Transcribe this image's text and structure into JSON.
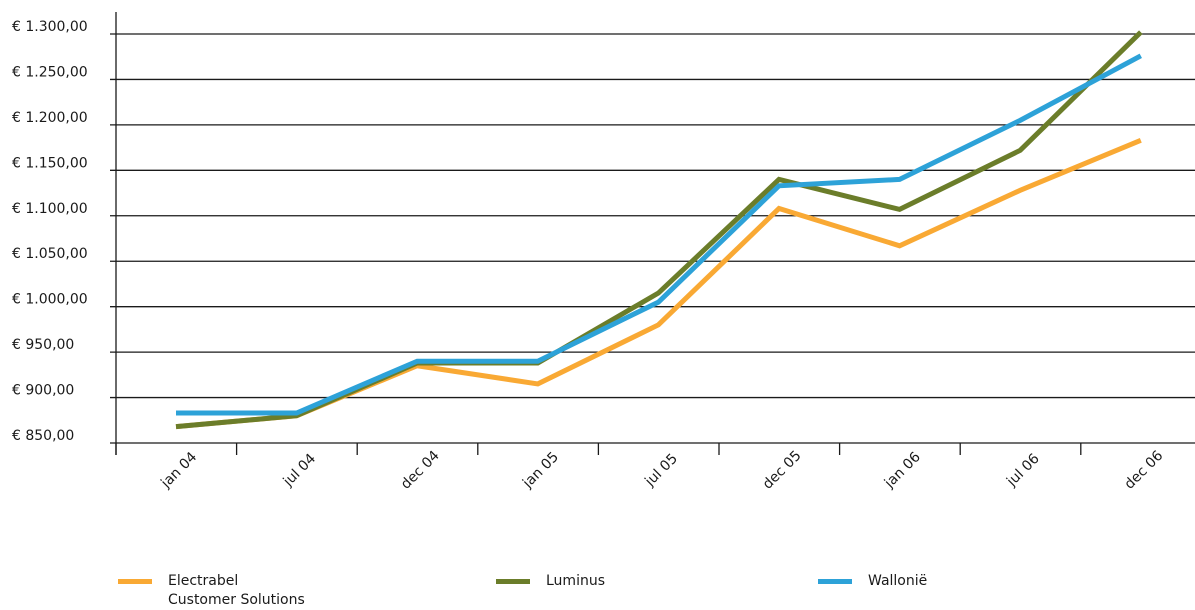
{
  "chart_data": {
    "type": "line",
    "categories": [
      "jan 04",
      "jul 04",
      "dec 04",
      "jan 05",
      "jul 05",
      "dec 05",
      "jan 06",
      "jul 06",
      "dec 06"
    ],
    "y_ticks": [
      "€ 850,00",
      "€ 900,00",
      "€ 950,00",
      "€ 1.000,00",
      "€ 1.050,00",
      "€ 1.100,00",
      "€ 1.150,00",
      "€ 1.200,00",
      "€ 1.250,00",
      "€ 1.300,00"
    ],
    "ylim": [
      850,
      1300
    ],
    "grid": true,
    "legend_position": "bottom",
    "series": [
      {
        "name": "Electrabel\nCustomer Solutions",
        "color": "#f9a934",
        "values": [
          868,
          880,
          935,
          915,
          980,
          1108,
          1067,
          1128,
          1183
        ]
      },
      {
        "name": "Luminus",
        "color": "#6b7d2a",
        "values": [
          868,
          880,
          938,
          938,
          1015,
          1140,
          1107,
          1172,
          1302
        ]
      },
      {
        "name": "Wallonië",
        "color": "#2da2d8",
        "values": [
          883,
          883,
          940,
          940,
          1005,
          1133,
          1140,
          1205,
          1276
        ]
      }
    ]
  }
}
